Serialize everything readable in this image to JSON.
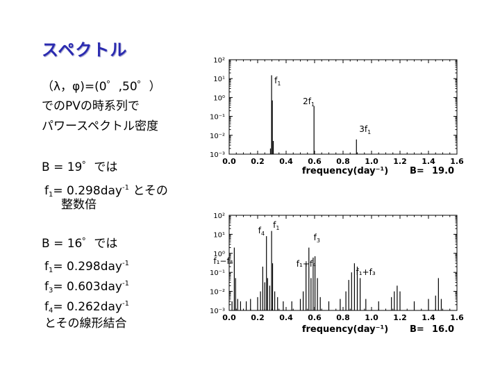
{
  "title": "スペクトル",
  "intro": {
    "line1": "（λ，φ)=(0゜,50゜）",
    "line2": "でのPVの時系列で",
    "line3": "パワースペクトル密度"
  },
  "case19": {
    "heading": "B = 19゜では",
    "f1_name": "f",
    "f1_sub": "1",
    "f1_value": "= 0.298day",
    "unit_exp": "-1",
    "tail": " とその",
    "tail2": "整数倍"
  },
  "case16": {
    "heading": "B = 16゜では",
    "rows": [
      {
        "name": "f",
        "sub": "1",
        "value": "= 0.298day",
        "exp": "-1"
      },
      {
        "name": "f",
        "sub": "3",
        "value": "= 0.603day",
        "exp": "-1"
      },
      {
        "name": "f",
        "sub": "4",
        "value": "= 0.262day",
        "exp": "-1"
      }
    ],
    "closing": "とその線形結合"
  },
  "colors": {
    "title": "#2a2ab0",
    "axis": "#000000"
  },
  "chart_data": [
    {
      "type": "line",
      "xlabel": "frequency(day⁻¹)",
      "ylabel": "",
      "xlim": [
        0.0,
        1.6
      ],
      "ylim_log10": [
        -3,
        2
      ],
      "yscale": "log",
      "xticks": [
        "0.0",
        "0.2",
        "0.4",
        "0.6",
        "0.8",
        "1.0",
        "1.2",
        "1.4",
        "1.6"
      ],
      "yticks": [
        "10⁻³",
        "10⁻²",
        "10⁻¹",
        "10⁰",
        "10¹",
        "10²"
      ],
      "param_label": "B=",
      "param_value": "19.0",
      "annotations": [
        {
          "text": "f",
          "sub": "1",
          "x": 0.298
        },
        {
          "text": "2f",
          "sub": "1",
          "x": 0.596
        },
        {
          "text": "3f",
          "sub": "1",
          "x": 0.894
        }
      ],
      "peaks": [
        {
          "x": 0.29,
          "y": 0.002
        },
        {
          "x": 0.298,
          "y": 15
        },
        {
          "x": 0.303,
          "y": 0.7
        },
        {
          "x": 0.31,
          "y": 0.005
        },
        {
          "x": 0.596,
          "y": 0.35
        },
        {
          "x": 0.894,
          "y": 0.006
        }
      ]
    },
    {
      "type": "line",
      "xlabel": "frequency(day⁻¹)",
      "ylabel": "",
      "xlim": [
        0.0,
        1.6
      ],
      "ylim_log10": [
        -3,
        2
      ],
      "yscale": "log",
      "xticks": [
        "0.0",
        "0.2",
        "0.4",
        "0.6",
        "0.8",
        "1.0",
        "1.2",
        "1.4",
        "1.6"
      ],
      "yticks": [
        "10⁻³",
        "10⁻²",
        "10⁻¹",
        "10⁰",
        "10¹",
        "10²"
      ],
      "param_label": "B=",
      "param_value": "16.0",
      "annotations": [
        {
          "text": "f",
          "sub": "4",
          "x": 0.262
        },
        {
          "text": "f",
          "sub": "1",
          "x": 0.298
        },
        {
          "text": "f",
          "sub": "3",
          "x": 0.603
        },
        {
          "text": "f₁−f₄",
          "sub": "",
          "x": 0.036
        },
        {
          "text": "f₁+f₄",
          "sub": "",
          "x": 0.56
        },
        {
          "text": "f₁+f₃",
          "sub": "",
          "x": 0.9
        }
      ],
      "peaks": [
        {
          "x": 0.02,
          "y": 0.003
        },
        {
          "x": 0.036,
          "y": 2.0
        },
        {
          "x": 0.045,
          "y": 0.05
        },
        {
          "x": 0.06,
          "y": 0.004
        },
        {
          "x": 0.08,
          "y": 0.003
        },
        {
          "x": 0.12,
          "y": 0.003
        },
        {
          "x": 0.15,
          "y": 0.004
        },
        {
          "x": 0.2,
          "y": 0.005
        },
        {
          "x": 0.22,
          "y": 0.01
        },
        {
          "x": 0.236,
          "y": 0.2
        },
        {
          "x": 0.25,
          "y": 0.03
        },
        {
          "x": 0.262,
          "y": 8.0
        },
        {
          "x": 0.27,
          "y": 0.05
        },
        {
          "x": 0.285,
          "y": 0.02
        },
        {
          "x": 0.298,
          "y": 15
        },
        {
          "x": 0.305,
          "y": 0.3
        },
        {
          "x": 0.32,
          "y": 0.01
        },
        {
          "x": 0.34,
          "y": 0.005
        },
        {
          "x": 0.38,
          "y": 0.003
        },
        {
          "x": 0.44,
          "y": 0.003
        },
        {
          "x": 0.5,
          "y": 0.004
        },
        {
          "x": 0.52,
          "y": 0.01
        },
        {
          "x": 0.54,
          "y": 0.3
        },
        {
          "x": 0.56,
          "y": 2.0
        },
        {
          "x": 0.575,
          "y": 0.05
        },
        {
          "x": 0.59,
          "y": 0.6
        },
        {
          "x": 0.603,
          "y": 0.7
        },
        {
          "x": 0.62,
          "y": 0.05
        },
        {
          "x": 0.64,
          "y": 0.005
        },
        {
          "x": 0.7,
          "y": 0.003
        },
        {
          "x": 0.78,
          "y": 0.004
        },
        {
          "x": 0.82,
          "y": 0.01
        },
        {
          "x": 0.84,
          "y": 0.04
        },
        {
          "x": 0.86,
          "y": 0.1
        },
        {
          "x": 0.88,
          "y": 0.3
        },
        {
          "x": 0.9,
          "y": 0.2
        },
        {
          "x": 0.92,
          "y": 0.05
        },
        {
          "x": 0.96,
          "y": 0.004
        },
        {
          "x": 1.05,
          "y": 0.003
        },
        {
          "x": 1.14,
          "y": 0.005
        },
        {
          "x": 1.16,
          "y": 0.01
        },
        {
          "x": 1.18,
          "y": 0.02
        },
        {
          "x": 1.2,
          "y": 0.01
        },
        {
          "x": 1.3,
          "y": 0.003
        },
        {
          "x": 1.4,
          "y": 0.004
        },
        {
          "x": 1.45,
          "y": 0.006
        },
        {
          "x": 1.47,
          "y": 0.05
        },
        {
          "x": 1.49,
          "y": 0.004
        }
      ]
    }
  ]
}
